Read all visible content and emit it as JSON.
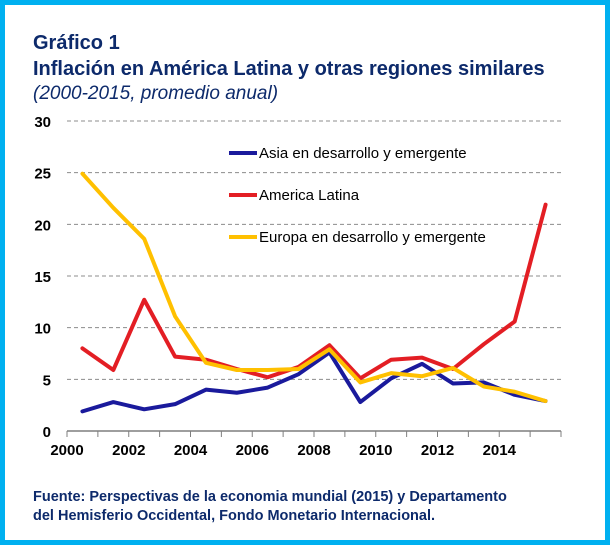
{
  "header": {
    "title_line1": "Gráfico 1",
    "title_line2": "Inflación  en América Latina y otras regiones similares",
    "subtitle": "(2000-2015, promedio anual)"
  },
  "source": {
    "line1": "Fuente: Perspectivas de la economia mundial  (2015) y Departamento",
    "line2": "del Hemisferio Occidental, Fondo Monetario Internacional."
  },
  "chart_data": {
    "type": "line",
    "title": "",
    "xlabel": "",
    "ylabel": "",
    "x": [
      2000,
      2001,
      2002,
      2003,
      2004,
      2005,
      2006,
      2007,
      2008,
      2009,
      2010,
      2011,
      2012,
      2013,
      2014,
      2015
    ],
    "xticks": [
      "2000",
      "2002",
      "2004",
      "2006",
      "2008",
      "2010",
      "2012",
      "2014"
    ],
    "yticks": [
      "0",
      "5",
      "10",
      "15",
      "20",
      "25",
      "30"
    ],
    "ylim": [
      0,
      30
    ],
    "xlim": [
      2000,
      2016
    ],
    "grid": "horizontal-dashed",
    "legend_position": "top-right",
    "series": [
      {
        "name": "Asia en desarrollo y emergente",
        "color": "#1a1a9c",
        "values": [
          1.9,
          2.8,
          2.1,
          2.6,
          4.0,
          3.7,
          4.2,
          5.5,
          7.6,
          2.8,
          5.1,
          6.5,
          4.6,
          4.7,
          3.5,
          2.9
        ]
      },
      {
        "name": "America Latina",
        "color": "#e31e24",
        "values": [
          8.0,
          5.9,
          12.7,
          7.2,
          6.9,
          6.0,
          5.2,
          6.2,
          8.3,
          5.1,
          6.9,
          7.1,
          6.0,
          8.4,
          10.6,
          21.9
        ]
      },
      {
        "name": "Europa en desarrollo y emergente",
        "color": "#ffc000",
        "values": [
          24.9,
          21.6,
          18.6,
          11.1,
          6.6,
          5.9,
          5.9,
          6.0,
          7.9,
          4.7,
          5.6,
          5.3,
          6.1,
          4.3,
          3.8,
          2.9
        ]
      }
    ]
  }
}
